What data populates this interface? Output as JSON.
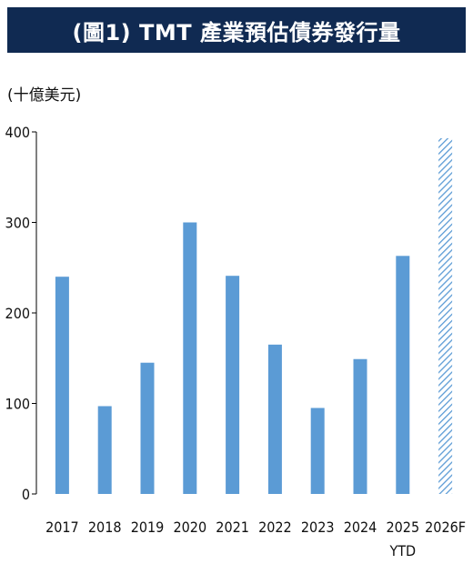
{
  "header": {
    "title": "(圖1) TMT 產業預估債券發行量"
  },
  "chart_data": {
    "type": "bar",
    "title": "(圖1) TMT 產業預估債券發行量",
    "unit_label": "(十億美元)",
    "categories": [
      "2017",
      "2018",
      "2019",
      "2020",
      "2021",
      "2022",
      "2023",
      "2024",
      "2025\nYTD",
      "2026F"
    ],
    "values": [
      240,
      97,
      145,
      300,
      241,
      165,
      95,
      149,
      263,
      393
    ],
    "ylim": [
      0,
      400
    ],
    "yticks": [
      0,
      100,
      200,
      300,
      400
    ],
    "grid": false,
    "legend": "none",
    "colors": {
      "bar": "#5b9bd5",
      "forecast_hatch": "#5b9bd5",
      "banner": "#102a52"
    },
    "forecast_categories": [
      "2026F"
    ]
  }
}
